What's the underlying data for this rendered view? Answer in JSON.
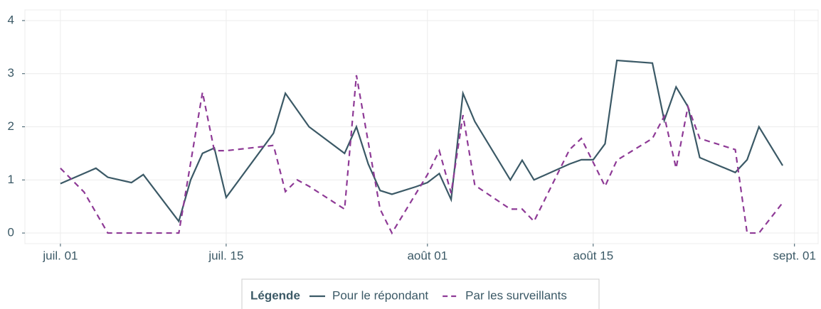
{
  "chart_data": {
    "type": "line",
    "legend_title": "Légende",
    "legend": "bottom",
    "grid": true,
    "xlim": [
      "06-28",
      "09-03"
    ],
    "xticks": [
      {
        "value": "07-01",
        "label": "juil. 01"
      },
      {
        "value": "07-15",
        "label": "juil. 15"
      },
      {
        "value": "08-01",
        "label": "août 01"
      },
      {
        "value": "08-15",
        "label": "août 15"
      },
      {
        "value": "09-01",
        "label": "sept. 01"
      }
    ],
    "ylim": [
      -0.2,
      4.2
    ],
    "yticks": [
      0,
      1,
      2,
      3,
      4
    ],
    "series": [
      {
        "name": "Pour le répondant",
        "color": "#3b5966",
        "dash": "solid",
        "x": [
          "07-01",
          "07-04",
          "07-05",
          "07-07",
          "07-08",
          "07-11",
          "07-12",
          "07-13",
          "07-14",
          "07-15",
          "07-19",
          "07-20",
          "07-22",
          "07-25",
          "07-26",
          "07-27",
          "07-28",
          "07-29",
          "07-31",
          "08-01",
          "08-02",
          "08-03",
          "08-04",
          "08-05",
          "08-08",
          "08-09",
          "08-10",
          "08-13",
          "08-14",
          "08-15",
          "08-16",
          "08-17",
          "08-20",
          "08-21",
          "08-22",
          "08-23",
          "08-24",
          "08-27",
          "08-28",
          "08-29",
          "08-31"
        ],
        "values": [
          0.93,
          1.22,
          1.05,
          0.95,
          1.1,
          0.22,
          1.0,
          1.5,
          1.6,
          0.67,
          1.88,
          2.63,
          2.0,
          1.5,
          2.0,
          1.3,
          0.8,
          0.73,
          0.87,
          0.95,
          1.12,
          0.63,
          2.63,
          2.1,
          1.0,
          1.37,
          1.0,
          1.3,
          1.38,
          1.38,
          1.68,
          3.25,
          3.2,
          2.12,
          2.75,
          2.38,
          1.42,
          1.14,
          1.38,
          2.0,
          1.27
        ]
      },
      {
        "name": "Par les surveillants",
        "color": "#8e3a96",
        "dash": "dashed",
        "x": [
          "07-01",
          "07-03",
          "07-05",
          "07-11",
          "07-13",
          "07-14",
          "07-15",
          "07-19",
          "07-20",
          "07-21",
          "07-22",
          "07-25",
          "07-26",
          "07-28",
          "07-29",
          "08-01",
          "08-02",
          "08-03",
          "08-04",
          "08-05",
          "08-08",
          "08-09",
          "08-10",
          "08-13",
          "08-14",
          "08-15",
          "08-16",
          "08-17",
          "08-20",
          "08-21",
          "08-22",
          "08-23",
          "08-24",
          "08-27",
          "08-28",
          "08-29",
          "08-31"
        ],
        "values": [
          1.22,
          0.77,
          0,
          0,
          2.65,
          1.55,
          1.55,
          1.65,
          0.78,
          1.0,
          0.88,
          0.45,
          2.97,
          0.45,
          0,
          1.1,
          1.55,
          0.75,
          2.22,
          0.9,
          0.45,
          0.45,
          0.22,
          1.57,
          1.78,
          1.33,
          0.88,
          1.37,
          1.78,
          2.2,
          1.22,
          2.38,
          1.78,
          1.57,
          0,
          0,
          0.57
        ]
      }
    ]
  }
}
